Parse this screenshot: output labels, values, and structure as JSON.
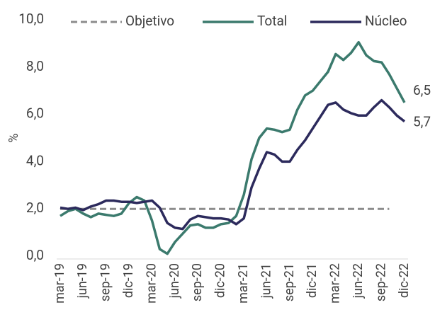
{
  "chart_data": {
    "type": "line",
    "categories": [
      "mar-19",
      null,
      null,
      "jun-19",
      null,
      null,
      "sep-19",
      null,
      null,
      "dic-19",
      null,
      null,
      "mar-20",
      null,
      null,
      "jun-20",
      null,
      null,
      "sep-20",
      null,
      null,
      "dic-20",
      null,
      null,
      "mar-21",
      null,
      null,
      "jun-21",
      null,
      null,
      "sep-21",
      null,
      null,
      "dic-21",
      null,
      null,
      "mar-22",
      null,
      null,
      "jun-22",
      null,
      null,
      "sep-22",
      null,
      null,
      "dic-22"
    ],
    "y_label": "%",
    "ylim": [
      0,
      10
    ],
    "yticks": [
      {
        "value": 0,
        "label": "0,0"
      },
      {
        "value": 2,
        "label": "2,0"
      },
      {
        "value": 4,
        "label": "4,0"
      },
      {
        "value": 6,
        "label": "6,0"
      },
      {
        "value": 8,
        "label": "8,0"
      },
      {
        "value": 10,
        "label": "10,0"
      }
    ],
    "grid": false,
    "legend": "top",
    "series": [
      {
        "name": "Objetivo",
        "color": "#8c8c8c",
        "dashed": true,
        "values": [
          2,
          2,
          2,
          2,
          2,
          2,
          2,
          2,
          2,
          2,
          2,
          2,
          2,
          2,
          2,
          2,
          2,
          2,
          2,
          2,
          2,
          2,
          2,
          2,
          2,
          2,
          2,
          2,
          2,
          2,
          2,
          2,
          2,
          2,
          2,
          2,
          2,
          2,
          2,
          2,
          2,
          2,
          2,
          2,
          null,
          null
        ]
      },
      {
        "name": "Total",
        "color": "#3b7a6d",
        "values": [
          1.7,
          1.9,
          2.0,
          1.8,
          1.65,
          1.8,
          1.75,
          1.7,
          1.8,
          2.25,
          2.5,
          2.35,
          1.5,
          0.3,
          0.1,
          0.6,
          0.95,
          1.3,
          1.35,
          1.2,
          1.2,
          1.35,
          1.4,
          1.7,
          2.6,
          4.1,
          5.0,
          5.4,
          5.35,
          5.25,
          5.35,
          6.2,
          6.8,
          7.0,
          7.4,
          7.8,
          8.55,
          8.3,
          8.6,
          9.05,
          8.5,
          8.25,
          8.2,
          7.7,
          7.1,
          6.5
        ],
        "value_labels": [
          null,
          null,
          null,
          null,
          null,
          null,
          null,
          null,
          null,
          null,
          null,
          null,
          null,
          null,
          null,
          null,
          null,
          null,
          null,
          null,
          null,
          null,
          null,
          null,
          null,
          null,
          null,
          null,
          null,
          null,
          null,
          null,
          null,
          null,
          null,
          null,
          null,
          null,
          null,
          null,
          null,
          null,
          null,
          null,
          null,
          "6,5"
        ]
      },
      {
        "name": "Núcleo",
        "color": "#2c2a5c",
        "values": [
          2.05,
          2.0,
          2.05,
          1.95,
          2.1,
          2.2,
          2.35,
          2.35,
          2.3,
          2.3,
          2.25,
          2.3,
          2.35,
          2.05,
          1.4,
          1.2,
          1.15,
          1.55,
          1.7,
          1.65,
          1.6,
          1.6,
          1.55,
          1.35,
          1.6,
          2.9,
          3.7,
          4.4,
          4.3,
          4.0,
          4.0,
          4.5,
          4.9,
          5.4,
          5.9,
          6.4,
          6.5,
          6.2,
          6.05,
          5.95,
          5.95,
          6.3,
          6.6,
          6.3,
          5.95,
          5.7
        ],
        "value_labels": [
          null,
          null,
          null,
          null,
          null,
          null,
          null,
          null,
          null,
          null,
          null,
          null,
          null,
          null,
          null,
          null,
          null,
          null,
          null,
          null,
          null,
          null,
          null,
          null,
          null,
          null,
          null,
          null,
          null,
          null,
          null,
          null,
          null,
          null,
          null,
          null,
          null,
          null,
          null,
          null,
          null,
          null,
          null,
          null,
          null,
          "5,7"
        ]
      }
    ]
  }
}
